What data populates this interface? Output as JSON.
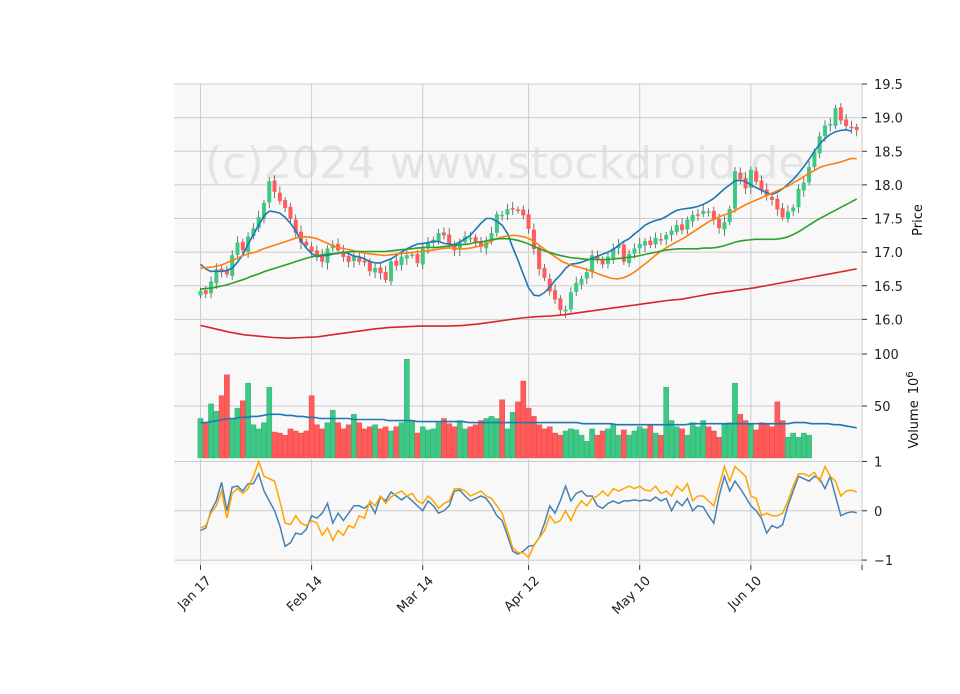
{
  "watermark": "(c)2024 www.stockdroid.de",
  "colors": {
    "up": "#3dc985",
    "down": "#ff5b5b",
    "sma_short": "#1f77b4",
    "sma_mid": "#ff7f0e",
    "sma_long": "#2ca02c",
    "sma_longest": "#d62728",
    "volume_ma": "#1f77b4",
    "indicator_blue": "#4682b4",
    "indicator_orange": "#ffa500",
    "panel_bg": "#f8f8f8",
    "grid": "#cccccc"
  },
  "chart_data": [
    {
      "id": "price",
      "type": "candlestick",
      "ylabel": "Price",
      "ylim": [
        15.5,
        19.5
      ],
      "yticks": [
        16.0,
        16.5,
        17.0,
        17.5,
        18.0,
        18.5,
        19.0,
        19.5
      ],
      "ytick_labels": [
        "16.0",
        "16.5",
        "17.0",
        "17.5",
        "18.0",
        "18.5",
        "19.0",
        "19.5"
      ],
      "x_index_range": [
        -5,
        125
      ],
      "xticks": [
        0,
        21,
        42,
        62,
        83,
        104,
        125
      ],
      "xtick_labels": [
        "Jan 17",
        "Feb 14",
        "Mar 14",
        "Apr 12",
        "May 10",
        "Jun 10",
        ""
      ],
      "close": [
        16.42,
        16.38,
        16.56,
        16.74,
        16.72,
        16.67,
        16.95,
        17.14,
        17.03,
        17.23,
        17.35,
        17.52,
        17.73,
        18.05,
        17.9,
        17.76,
        17.66,
        17.5,
        17.29,
        17.14,
        17.1,
        17.01,
        16.94,
        16.86,
        17.05,
        17.11,
        17.03,
        16.93,
        16.86,
        16.93,
        16.86,
        16.85,
        16.72,
        16.76,
        16.69,
        16.59,
        16.86,
        16.8,
        16.93,
        16.95,
        16.96,
        16.84,
        17.05,
        17.13,
        17.18,
        17.28,
        17.25,
        17.13,
        17.03,
        17.14,
        17.23,
        17.21,
        17.15,
        17.08,
        17.15,
        17.28,
        17.56,
        17.55,
        17.64,
        17.65,
        17.62,
        17.55,
        17.35,
        17.05,
        16.75,
        16.62,
        16.42,
        16.3,
        16.14,
        16.14,
        16.4,
        16.54,
        16.6,
        16.7,
        16.95,
        16.88,
        16.82,
        16.93,
        17.05,
        17.1,
        16.86,
        16.97,
        17.05,
        17.12,
        17.16,
        17.11,
        17.21,
        17.18,
        17.25,
        17.32,
        17.4,
        17.33,
        17.48,
        17.55,
        17.56,
        17.61,
        17.6,
        17.48,
        17.36,
        17.44,
        17.64,
        18.2,
        18.09,
        17.95,
        18.22,
        18.05,
        17.92,
        17.84,
        17.78,
        17.64,
        17.52,
        17.6,
        17.66,
        17.94,
        18.03,
        18.26,
        18.49,
        18.72,
        18.88,
        18.9,
        19.14,
        18.96,
        18.88,
        18.85,
        18.82
      ],
      "open_gap": 0.06,
      "sma_short": [
        16.82,
        16.75,
        16.71,
        16.72,
        16.71,
        16.73,
        16.76,
        16.85,
        16.96,
        17.12,
        17.26,
        17.4,
        17.54,
        17.61,
        17.6,
        17.58,
        17.52,
        17.43,
        17.32,
        17.17,
        17.06,
        16.98,
        16.93,
        16.95,
        16.95,
        16.97,
        16.98,
        17.0,
        16.98,
        16.94,
        16.93,
        16.9,
        16.86,
        16.84,
        16.84,
        16.87,
        16.9,
        16.95,
        17.0,
        17.05,
        17.09,
        17.12,
        17.13,
        17.14,
        17.16,
        17.16,
        17.13,
        17.12,
        17.11,
        17.15,
        17.2,
        17.25,
        17.34,
        17.43,
        17.5,
        17.5,
        17.46,
        17.4,
        17.28,
        17.07,
        16.88,
        16.67,
        16.47,
        16.36,
        16.35,
        16.4,
        16.48,
        16.58,
        16.66,
        16.76,
        16.82,
        16.83,
        16.85,
        16.88,
        16.91,
        16.94,
        16.97,
        17.0,
        17.04,
        17.1,
        17.16,
        17.2,
        17.27,
        17.33,
        17.4,
        17.44,
        17.47,
        17.49,
        17.53,
        17.58,
        17.62,
        17.64,
        17.65,
        17.66,
        17.68,
        17.71,
        17.75,
        17.8,
        17.87,
        17.94,
        18.0,
        18.06,
        18.07,
        18.05,
        18.0,
        17.96,
        17.92,
        17.88,
        17.86,
        17.89,
        17.94,
        18.01,
        18.08,
        18.17,
        18.27,
        18.38,
        18.5,
        18.61,
        18.69,
        18.75,
        18.79,
        18.81,
        18.82,
        18.8
      ],
      "sma_mid": [
        16.76,
        16.77,
        16.78,
        16.8,
        16.83,
        16.87,
        16.91,
        16.95,
        16.98,
        17.0,
        17.04,
        17.07,
        17.1,
        17.13,
        17.16,
        17.19,
        17.22,
        17.23,
        17.22,
        17.2,
        17.16,
        17.12,
        17.08,
        17.06,
        17.04,
        17.02,
        17.0,
        16.98,
        16.97,
        16.96,
        16.95,
        16.96,
        16.97,
        16.98,
        16.99,
        17.0,
        17.01,
        17.02,
        17.03,
        17.05,
        17.06,
        17.06,
        17.05,
        17.05,
        17.06,
        17.08,
        17.1,
        17.14,
        17.19,
        17.22,
        17.24,
        17.25,
        17.24,
        17.22,
        17.18,
        17.12,
        17.05,
        16.98,
        16.92,
        16.86,
        16.82,
        16.79,
        16.77,
        16.74,
        16.71,
        16.67,
        16.64,
        16.61,
        16.6,
        16.62,
        16.66,
        16.72,
        16.79,
        16.86,
        16.94,
        17.01,
        17.07,
        17.12,
        17.17,
        17.22,
        17.28,
        17.34,
        17.4,
        17.46,
        17.5,
        17.54,
        17.57,
        17.61,
        17.66,
        17.71,
        17.75,
        17.79,
        17.83,
        17.87,
        17.91,
        17.95,
        17.99,
        18.05,
        18.1,
        18.16,
        18.21,
        18.26,
        18.29,
        18.31,
        18.33,
        18.36,
        18.39,
        18.39
      ],
      "sma_long": [
        16.45,
        16.46,
        16.47,
        16.49,
        16.51,
        16.54,
        16.57,
        16.6,
        16.64,
        16.67,
        16.71,
        16.74,
        16.77,
        16.8,
        16.83,
        16.86,
        16.89,
        16.92,
        16.94,
        16.96,
        16.97,
        16.98,
        16.99,
        17.0,
        17.01,
        17.01,
        17.01,
        17.01,
        17.01,
        17.01,
        17.02,
        17.03,
        17.04,
        17.05,
        17.06,
        17.07,
        17.07,
        17.07,
        17.08,
        17.09,
        17.1,
        17.11,
        17.12,
        17.14,
        17.15,
        17.17,
        17.19,
        17.2,
        17.2,
        17.19,
        17.17,
        17.14,
        17.1,
        17.06,
        17.02,
        16.99,
        16.96,
        16.94,
        16.92,
        16.91,
        16.9,
        16.89,
        16.89,
        16.89,
        16.89,
        16.9,
        16.91,
        16.92,
        16.93,
        16.95,
        16.97,
        16.99,
        17.01,
        17.03,
        17.04,
        17.05,
        17.05,
        17.05,
        17.05,
        17.06,
        17.06,
        17.07,
        17.09,
        17.12,
        17.15,
        17.17,
        17.18,
        17.19,
        17.19,
        17.19,
        17.19,
        17.2,
        17.22,
        17.26,
        17.31,
        17.37,
        17.43,
        17.49,
        17.54,
        17.59,
        17.64,
        17.69,
        17.74,
        17.79
      ],
      "sma_longest": [
        15.91,
        15.86,
        15.81,
        15.77,
        15.75,
        15.73,
        15.72,
        15.73,
        15.74,
        15.77,
        15.8,
        15.83,
        15.86,
        15.88,
        15.89,
        15.9,
        15.9,
        15.9,
        15.91,
        15.93,
        15.96,
        15.99,
        16.02,
        16.04,
        16.05,
        16.07,
        16.1,
        16.13,
        16.16,
        16.19,
        16.22,
        16.25,
        16.28,
        16.3,
        16.34,
        16.38,
        16.41,
        16.44,
        16.47,
        16.51,
        16.55,
        16.59,
        16.63,
        16.67,
        16.71,
        16.75
      ],
      "sma_longest_x": [
        0,
        5,
        10,
        15,
        20,
        25,
        30,
        35,
        40,
        45,
        50,
        55,
        60,
        65,
        70,
        75,
        80,
        82,
        84,
        86,
        88,
        90,
        92,
        94,
        95,
        96,
        98,
        100,
        102,
        104,
        106,
        108,
        110,
        112,
        114,
        116,
        117,
        118,
        119,
        120,
        121,
        122,
        123,
        124,
        125,
        125
      ],
      "sma_mid_x_start": 0,
      "sma_mid_step": 1.1
    },
    {
      "id": "volume",
      "type": "bar",
      "ylabel": "Volume",
      "ylabel_exponent": "10",
      "ylabel_exponent_power": "6",
      "ylim": [
        0,
        100
      ],
      "yticks": [
        50,
        100
      ],
      "ytick_labels": [
        "50",
        "100"
      ],
      "values": [
        38,
        34,
        52,
        45,
        60,
        80,
        38,
        48,
        55,
        72,
        32,
        28,
        34,
        68,
        25,
        24,
        22,
        28,
        26,
        24,
        26,
        60,
        32,
        28,
        34,
        46,
        34,
        28,
        32,
        42,
        34,
        28,
        30,
        32,
        28,
        30,
        26,
        30,
        34,
        95,
        36,
        24,
        30,
        27,
        28,
        34,
        38,
        33,
        30,
        36,
        28,
        30,
        32,
        36,
        38,
        40,
        38,
        56,
        28,
        44,
        54,
        74,
        48,
        40,
        32,
        28,
        30,
        24,
        22,
        26,
        28,
        27,
        22,
        16,
        28,
        22,
        26,
        28,
        32,
        22,
        27,
        22,
        26,
        30,
        28,
        32,
        24,
        22,
        68,
        36,
        30,
        28,
        22,
        34,
        30,
        36,
        30,
        26,
        20,
        32,
        34,
        72,
        42,
        36,
        32,
        27,
        34,
        32,
        30,
        54,
        36,
        20,
        24,
        20,
        24,
        22
      ],
      "volume_ma": [
        34,
        34,
        35,
        36,
        37,
        38,
        38,
        39,
        39,
        40,
        40,
        41,
        42,
        42,
        42,
        41,
        41,
        40,
        40,
        39,
        39,
        38,
        38,
        38,
        38,
        38,
        38,
        37,
        37,
        37,
        37,
        37,
        37,
        36,
        36,
        36,
        36,
        36,
        35,
        35,
        35,
        35,
        35,
        35,
        35,
        35,
        35,
        34,
        34,
        34,
        34,
        34,
        34,
        34,
        34,
        34,
        34,
        34,
        34,
        34,
        34,
        34,
        34,
        34,
        34,
        34,
        34,
        33,
        33,
        33,
        33,
        33,
        33,
        32,
        32,
        32,
        32,
        32,
        32,
        32,
        32,
        32,
        32,
        32,
        32,
        32,
        33,
        33,
        33,
        33,
        33,
        33,
        33,
        33,
        33,
        33,
        33,
        33,
        33,
        33,
        33,
        33,
        33,
        33,
        34,
        34,
        34,
        33,
        33,
        33,
        33,
        32,
        32,
        31,
        30,
        29
      ]
    },
    {
      "id": "indicator",
      "type": "line",
      "ylim": [
        -1.1,
        1.05
      ],
      "yticks": [
        -1,
        0,
        1
      ],
      "ytick_labels": [
        "−1",
        "0",
        "1"
      ],
      "series_blue": [
        -0.4,
        -0.35,
        0.0,
        0.2,
        0.58,
        0.0,
        0.48,
        0.5,
        0.4,
        0.55,
        0.55,
        0.75,
        0.4,
        0.2,
        0.0,
        -0.3,
        -0.72,
        -0.65,
        -0.45,
        -0.48,
        -0.38,
        -0.1,
        -0.15,
        -0.05,
        0.15,
        -0.25,
        -0.05,
        -0.2,
        -0.05,
        0.1,
        0.1,
        0.05,
        0.15,
        -0.05,
        0.28,
        0.2,
        0.38,
        0.3,
        0.22,
        0.3,
        0.2,
        0.1,
        0.0,
        0.2,
        0.1,
        -0.05,
        0.0,
        0.1,
        0.4,
        0.42,
        0.3,
        0.2,
        0.25,
        0.3,
        0.25,
        0.1,
        -0.1,
        -0.2,
        -0.5,
        -0.82,
        -0.88,
        -0.82,
        -0.72,
        -0.7,
        -0.55,
        -0.25,
        0.1,
        -0.05,
        0.2,
        0.5,
        0.2,
        0.35,
        0.4,
        0.3,
        0.3,
        0.1,
        0.05,
        0.15,
        0.2,
        0.15,
        0.2,
        0.2,
        0.22,
        0.2,
        0.22,
        0.2,
        0.28,
        0.2,
        0.25,
        0.0,
        0.2,
        0.1,
        0.25,
        0.0,
        0.1,
        0.08,
        -0.1,
        -0.25,
        0.3,
        0.7,
        0.4,
        0.6,
        0.45,
        0.28,
        0.1,
        0.0,
        -0.15,
        -0.45,
        -0.3,
        -0.35,
        -0.28,
        0.1,
        0.4,
        0.7,
        0.65,
        0.6,
        0.7,
        0.65,
        0.45,
        0.7,
        0.3,
        -0.1,
        -0.05,
        -0.02,
        -0.04
      ],
      "series_orange": [
        -0.35,
        -0.3,
        -0.05,
        0.1,
        0.4,
        -0.15,
        0.35,
        0.45,
        0.35,
        0.45,
        0.7,
        1.0,
        0.7,
        0.65,
        0.6,
        0.2,
        -0.25,
        -0.28,
        -0.1,
        -0.25,
        -0.3,
        -0.2,
        -0.25,
        -0.5,
        -0.35,
        -0.6,
        -0.4,
        -0.5,
        -0.3,
        -0.35,
        -0.1,
        -0.15,
        0.2,
        0.1,
        0.3,
        0.15,
        0.28,
        0.35,
        0.4,
        0.3,
        0.35,
        0.2,
        0.15,
        0.3,
        0.2,
        0.05,
        0.15,
        0.2,
        0.45,
        0.45,
        0.4,
        0.3,
        0.35,
        0.4,
        0.3,
        0.25,
        0.1,
        -0.05,
        -0.4,
        -0.75,
        -0.85,
        -0.85,
        -0.95,
        -0.7,
        -0.55,
        -0.4,
        -0.1,
        -0.25,
        -0.2,
        0.0,
        -0.2,
        0.05,
        0.2,
        0.1,
        0.25,
        0.3,
        0.4,
        0.3,
        0.45,
        0.4,
        0.45,
        0.5,
        0.45,
        0.5,
        0.42,
        0.4,
        0.5,
        0.35,
        0.4,
        0.3,
        0.5,
        0.4,
        0.55,
        0.2,
        0.3,
        0.3,
        0.2,
        0.1,
        0.5,
        0.9,
        0.6,
        0.9,
        0.8,
        0.7,
        0.3,
        0.25,
        -0.1,
        -0.05,
        -0.1,
        -0.1,
        -0.05,
        0.2,
        0.5,
        0.75,
        0.75,
        0.7,
        0.78,
        0.6,
        0.9,
        0.7,
        0.6,
        0.3,
        0.4,
        0.42,
        0.38
      ]
    }
  ]
}
